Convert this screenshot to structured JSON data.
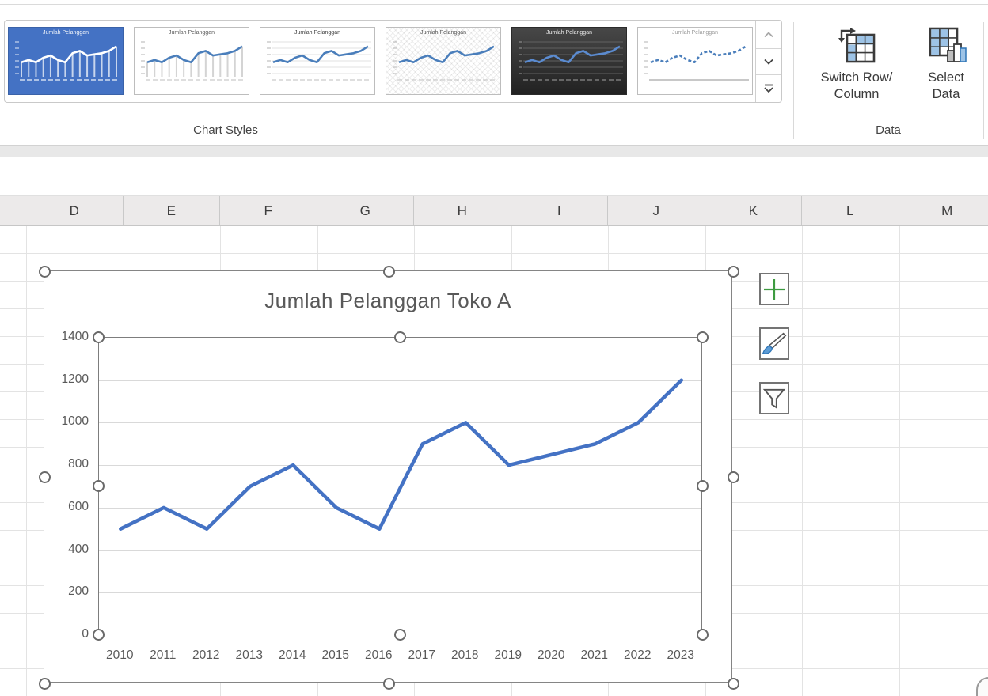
{
  "ribbon": {
    "gallery": {
      "group_label": "Chart Styles",
      "thumbnails": [
        {
          "label": "Jumlah Pelanggan",
          "variant": "blue-selected"
        },
        {
          "label": "Jumlah Pelanggan",
          "variant": "drop-lines"
        },
        {
          "label": "Jumlah Pelanggan",
          "variant": "gridlines"
        },
        {
          "label": "Jumlah Pelanggan",
          "variant": "pattern"
        },
        {
          "label": "Jumlah Pelanggan",
          "variant": "dark"
        },
        {
          "label": "Jumlah Pelanggan",
          "variant": "dashed"
        }
      ]
    },
    "data_group": {
      "group_label": "Data",
      "switch_row_column_line1": "Switch Row/",
      "switch_row_column_line2": "Column",
      "select_data_line1": "Select",
      "select_data_line2": "Data"
    }
  },
  "spreadsheet": {
    "columns": [
      "D",
      "E",
      "F",
      "G",
      "H",
      "I",
      "J",
      "K",
      "L",
      "M"
    ]
  },
  "chart_data": {
    "type": "line",
    "title": "Jumlah Pelanggan Toko A",
    "x": [
      "2010",
      "2011",
      "2012",
      "2013",
      "2014",
      "2015",
      "2016",
      "2017",
      "2018",
      "2019",
      "2020",
      "2021",
      "2022",
      "2023"
    ],
    "values": [
      500,
      600,
      500,
      700,
      800,
      600,
      500,
      900,
      1000,
      800,
      850,
      900,
      1000,
      1200
    ],
    "ylim": [
      0,
      1400
    ],
    "ytick_step": 200,
    "grid": true,
    "legend": "none",
    "line_color": "#4472C4",
    "title_color": "#595959",
    "axis_text_color": "#595959",
    "gridline_color": "#d9d9d9"
  }
}
